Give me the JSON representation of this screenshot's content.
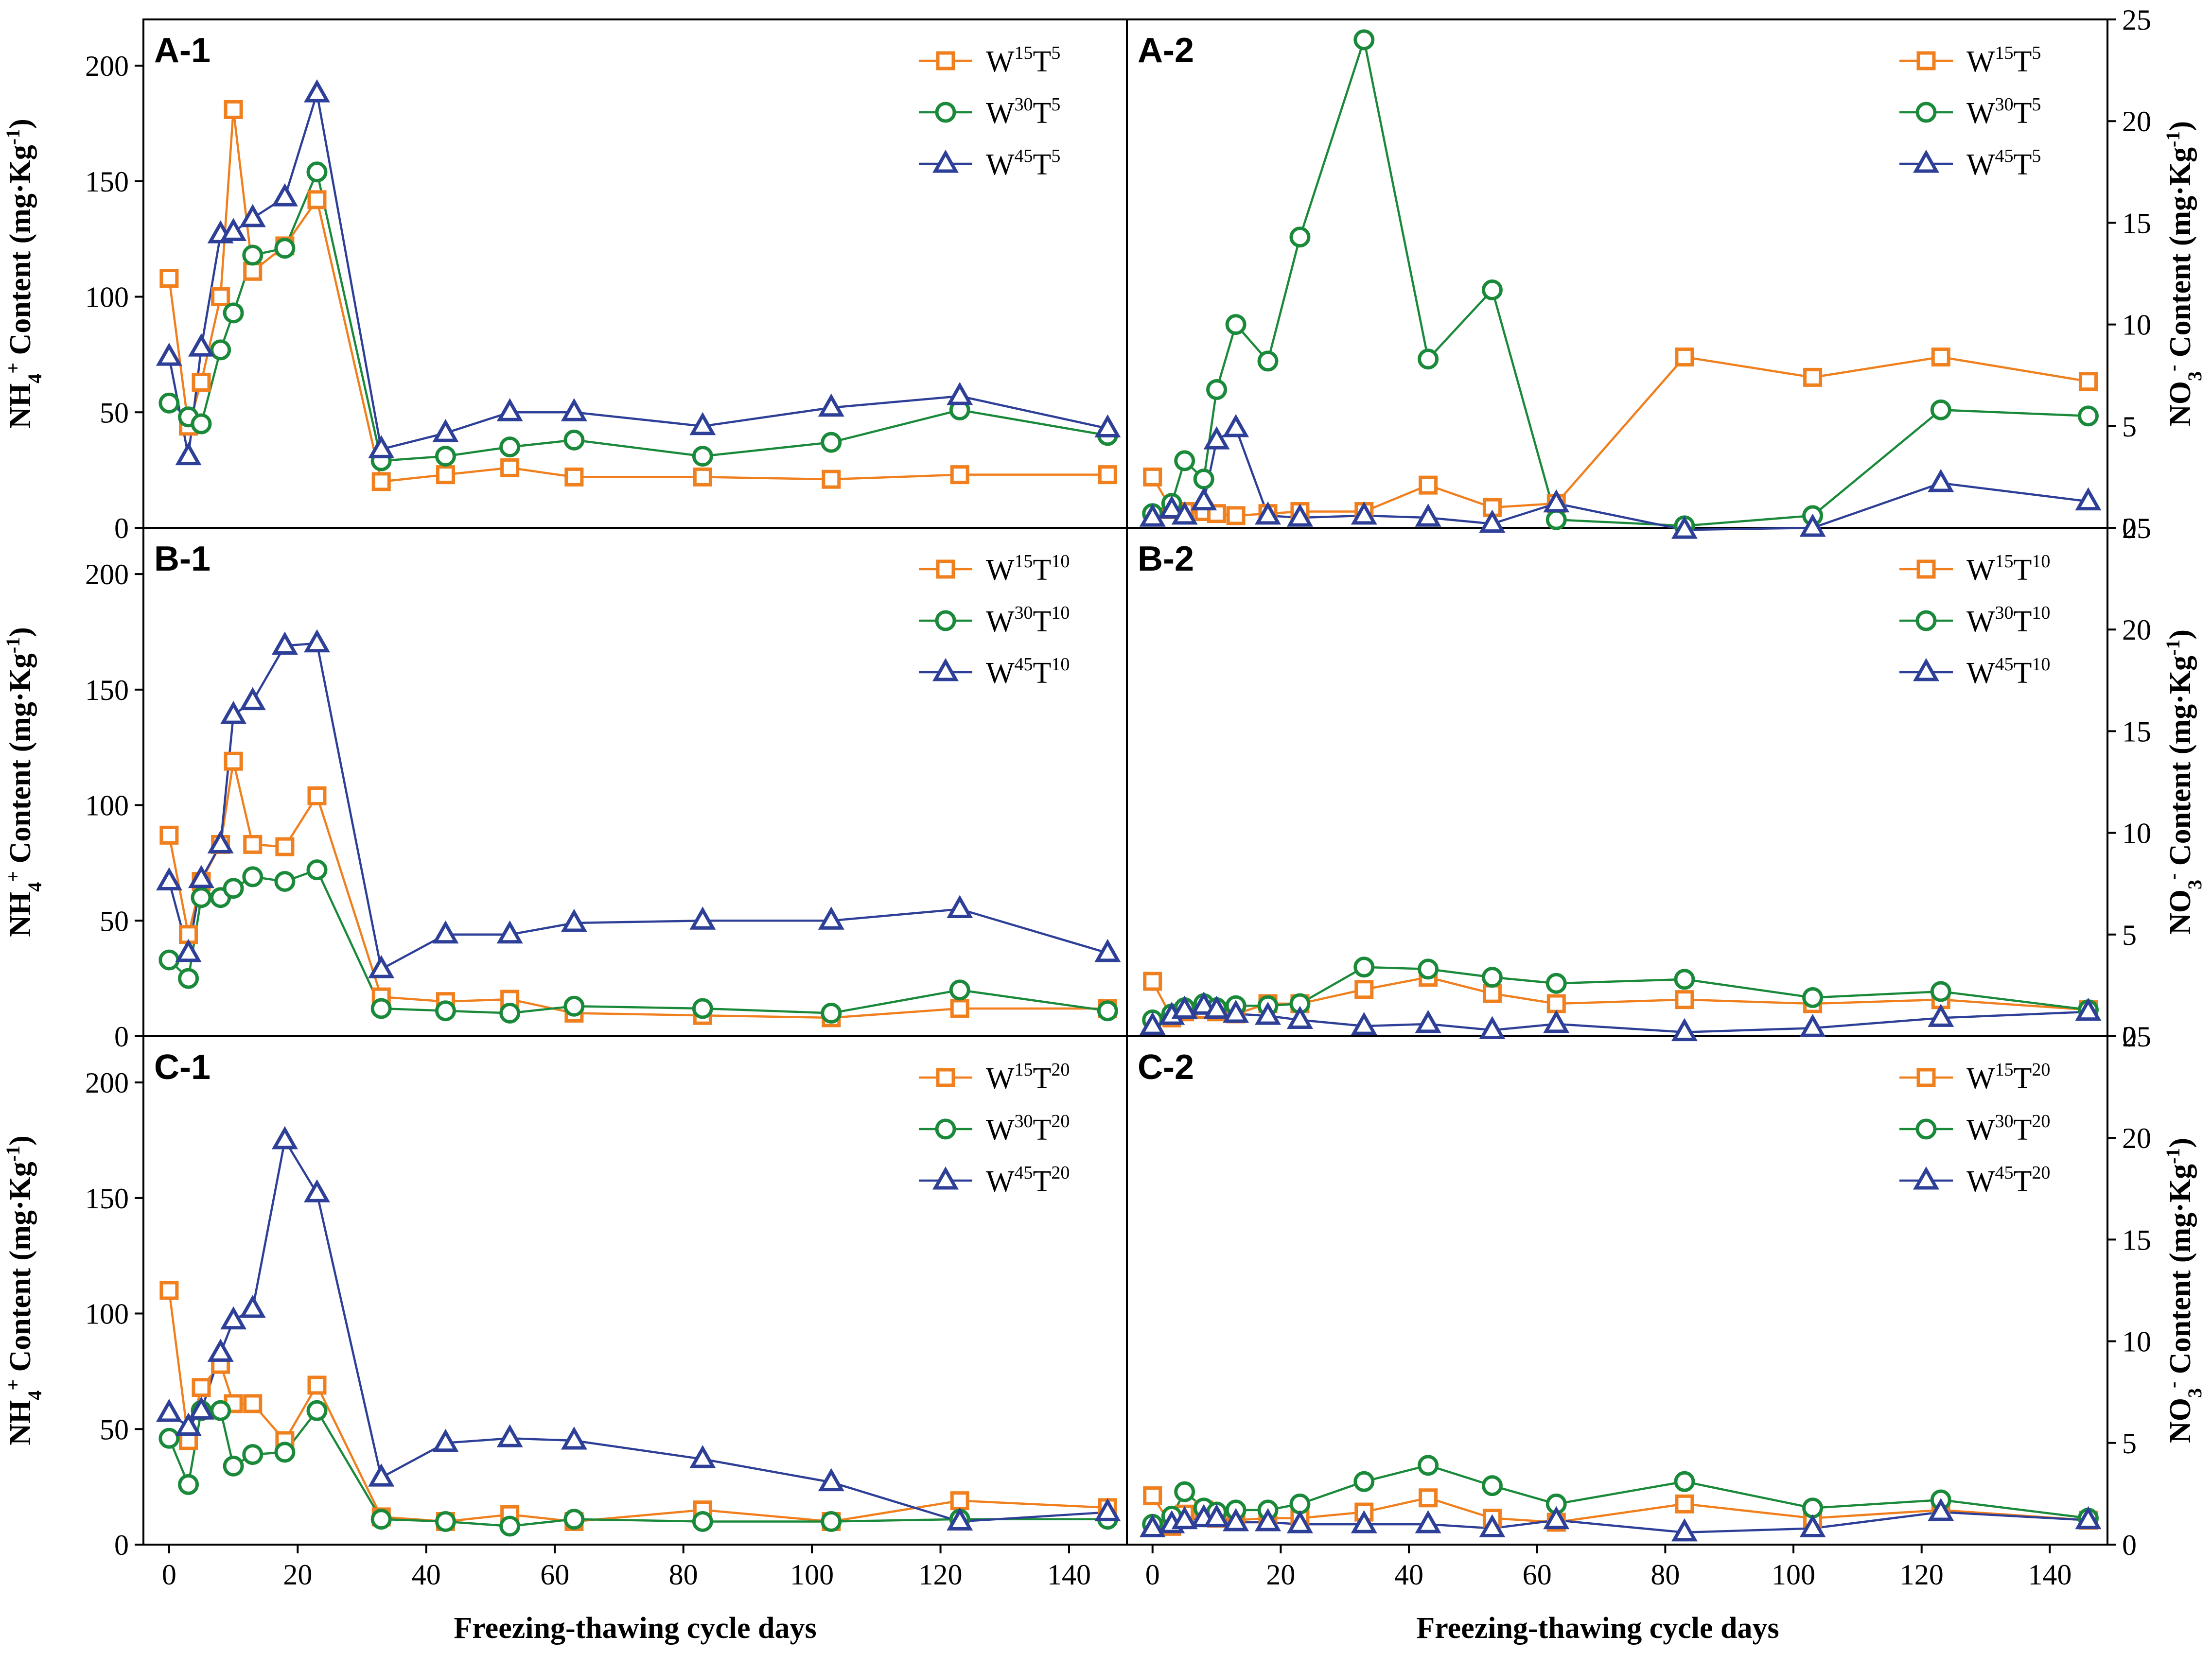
{
  "chart_data": {
    "type": "line",
    "xlabel": "Freezing-thawing cycle days",
    "x_ticks": [
      0,
      20,
      40,
      60,
      80,
      100,
      120,
      140
    ],
    "xlim": [
      -4,
      149
    ],
    "left_axis": {
      "title": {
        "main": "NH",
        "sub": "4",
        "sup": "+",
        "rest": " Content (mg·Kg",
        "sup2": "-1",
        "close": ")"
      },
      "ylim": [
        0,
        220
      ],
      "ticks": [
        0,
        50,
        100,
        150,
        200
      ]
    },
    "right_axis": {
      "title": {
        "main": "NO",
        "sub": "3",
        "sup": "-",
        "rest": " Content (mg·Kg",
        "sup2": "-1",
        "close": ")"
      },
      "ylim": [
        0,
        25
      ],
      "ticks": [
        0,
        5,
        10,
        15,
        20,
        25
      ]
    },
    "x": [
      0,
      3,
      5,
      8,
      10,
      13,
      18,
      23,
      33,
      43,
      53,
      63,
      83,
      103,
      123,
      146
    ],
    "series_styles": [
      {
        "color": "#f07f1e",
        "marker": "square"
      },
      {
        "color": "#1a8a3a",
        "marker": "circle"
      },
      {
        "color": "#2e3f97",
        "marker": "triangle"
      }
    ],
    "panels": [
      {
        "label": "A-1",
        "row": 0,
        "col": 0,
        "series": [
          {
            "name": "W15T5",
            "legend": {
              "w": "15",
              "t": "5"
            },
            "values": [
              108,
              44,
              63,
              100,
              181,
              111,
              122,
              142,
              20,
              23,
              26,
              22,
              22,
              21,
              23,
              23
            ]
          },
          {
            "name": "W30T5",
            "legend": {
              "w": "30",
              "t": "5"
            },
            "values": [
              54,
              48,
              45,
              77,
              93,
              118,
              121,
              154,
              29,
              31,
              35,
              38,
              31,
              37,
              51,
              40
            ]
          },
          {
            "name": "W45T5",
            "legend": {
              "w": "45",
              "t": "5"
            },
            "values": [
              74,
              31,
              78,
              127,
              128,
              134,
              143,
              188,
              34,
              41,
              50,
              50,
              44,
              52,
              57,
              43
            ]
          }
        ]
      },
      {
        "label": "A-2",
        "row": 0,
        "col": 1,
        "series": [
          {
            "name": "W15T5",
            "legend": {
              "w": "15",
              "t": "5"
            },
            "values": [
              2.5,
              0.9,
              0.8,
              0.8,
              0.7,
              0.6,
              0.7,
              0.8,
              0.8,
              2.1,
              1.0,
              1.2,
              8.4,
              7.4,
              8.4,
              7.2
            ]
          },
          {
            "name": "W30T5",
            "legend": {
              "w": "30",
              "t": "5"
            },
            "values": [
              0.7,
              1.2,
              3.3,
              2.4,
              6.8,
              10.0,
              8.2,
              14.3,
              24.0,
              8.3,
              11.7,
              0.4,
              0.1,
              0.6,
              5.8,
              5.5
            ]
          },
          {
            "name": "W45T5",
            "legend": {
              "w": "45",
              "t": "5"
            },
            "values": [
              0.5,
              0.9,
              0.6,
              1.3,
              4.3,
              4.9,
              0.6,
              0.5,
              0.6,
              0.5,
              0.2,
              1.2,
              -0.1,
              0.0,
              2.2,
              1.3
            ]
          }
        ]
      },
      {
        "label": "B-1",
        "row": 1,
        "col": 0,
        "series": [
          {
            "name": "W15T10",
            "legend": {
              "w": "15",
              "t": "10"
            },
            "values": [
              87,
              44,
              67,
              83,
              119,
              83,
              82,
              104,
              17,
              15,
              16,
              10,
              9,
              8,
              12,
              12
            ]
          },
          {
            "name": "W30T10",
            "legend": {
              "w": "30",
              "t": "10"
            },
            "values": [
              33,
              25,
              60,
              60,
              64,
              69,
              67,
              72,
              12,
              11,
              10,
              13,
              12,
              10,
              20,
              11
            ]
          },
          {
            "name": "W45T10",
            "legend": {
              "w": "45",
              "t": "10"
            },
            "values": [
              67,
              36,
              68,
              83,
              139,
              145,
              169,
              170,
              29,
              44,
              44,
              49,
              50,
              50,
              55,
              36
            ]
          }
        ]
      },
      {
        "label": "B-2",
        "row": 1,
        "col": 1,
        "series": [
          {
            "name": "W15T10",
            "legend": {
              "w": "15",
              "t": "10"
            },
            "values": [
              2.7,
              0.9,
              1.2,
              1.3,
              1.2,
              1.1,
              1.6,
              1.6,
              2.3,
              2.9,
              2.1,
              1.6,
              1.8,
              1.6,
              1.8,
              1.3
            ]
          },
          {
            "name": "W30T10",
            "legend": {
              "w": "30",
              "t": "10"
            },
            "values": [
              0.8,
              1.1,
              1.4,
              1.6,
              1.4,
              1.5,
              1.5,
              1.6,
              3.4,
              3.3,
              2.9,
              2.6,
              2.8,
              1.9,
              2.2,
              1.3
            ]
          },
          {
            "name": "W45T10",
            "legend": {
              "w": "45",
              "t": "10"
            },
            "values": [
              0.5,
              1.0,
              1.3,
              1.5,
              1.3,
              1.1,
              1.0,
              0.8,
              0.5,
              0.6,
              0.3,
              0.6,
              0.2,
              0.4,
              0.9,
              1.2
            ]
          }
        ]
      },
      {
        "label": "C-1",
        "row": 2,
        "col": 0,
        "series": [
          {
            "name": "W15T20",
            "legend": {
              "w": "15",
              "t": "20"
            },
            "values": [
              110,
              45,
              68,
              78,
              61,
              61,
              45,
              69,
              12,
              10,
              13,
              10,
              15,
              10,
              19,
              16
            ]
          },
          {
            "name": "W30T20",
            "legend": {
              "w": "30",
              "t": "20"
            },
            "values": [
              46,
              26,
              58,
              58,
              34,
              39,
              40,
              58,
              11,
              10,
              8,
              11,
              10,
              10,
              11,
              11
            ]
          },
          {
            "name": "W45T20",
            "legend": {
              "w": "45",
              "t": "20"
            },
            "values": [
              57,
              51,
              58,
              83,
              97,
              102,
              175,
              152,
              29,
              44,
              46,
              45,
              37,
              27,
              10,
              14
            ]
          }
        ]
      },
      {
        "label": "C-2",
        "row": 2,
        "col": 1,
        "series": [
          {
            "name": "W15T20",
            "legend": {
              "w": "15",
              "t": "20"
            },
            "values": [
              2.4,
              0.9,
              1.5,
              1.7,
              1.3,
              1.2,
              1.3,
              1.3,
              1.6,
              2.3,
              1.3,
              1.1,
              2.0,
              1.3,
              1.7,
              1.2
            ]
          },
          {
            "name": "W30T20",
            "legend": {
              "w": "30",
              "t": "20"
            },
            "values": [
              1.0,
              1.4,
              2.6,
              1.8,
              1.6,
              1.7,
              1.7,
              2.0,
              3.1,
              3.9,
              2.9,
              2.0,
              3.1,
              1.8,
              2.2,
              1.3
            ]
          },
          {
            "name": "W45T20",
            "legend": {
              "w": "45",
              "t": "20"
            },
            "values": [
              0.8,
              1.0,
              1.2,
              1.3,
              1.3,
              1.1,
              1.1,
              1.0,
              1.0,
              1.0,
              0.8,
              1.2,
              0.6,
              0.8,
              1.6,
              1.2
            ]
          }
        ]
      }
    ]
  }
}
